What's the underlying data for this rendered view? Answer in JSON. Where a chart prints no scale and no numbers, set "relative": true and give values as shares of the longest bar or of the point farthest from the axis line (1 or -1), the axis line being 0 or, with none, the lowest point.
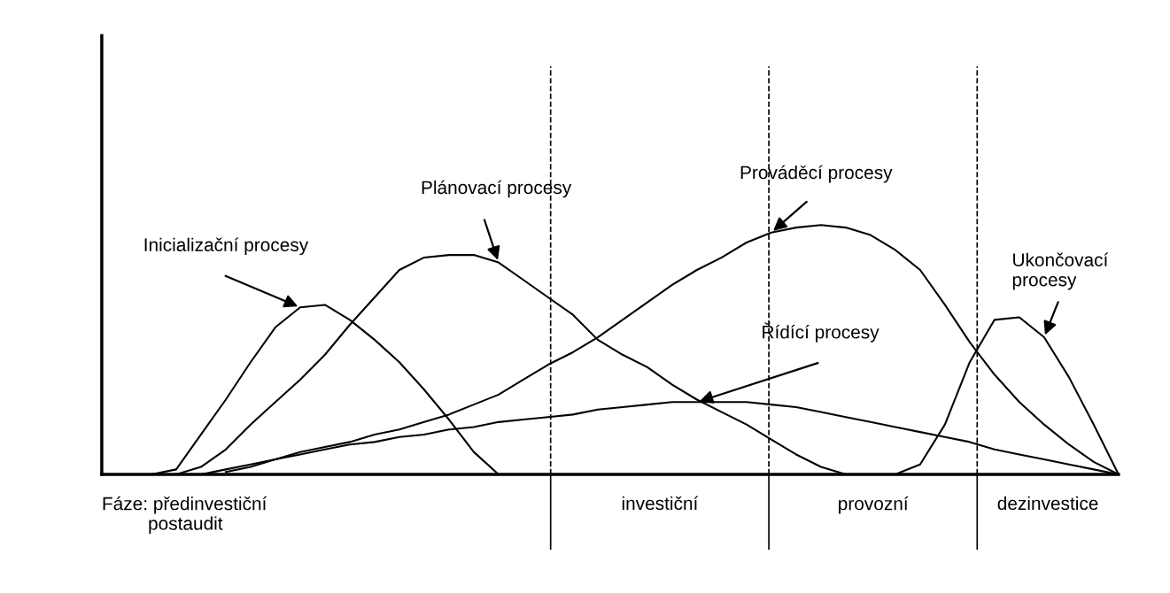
{
  "chart_data": {
    "type": "line",
    "relative": true,
    "marker": "none",
    "line_style": "solid",
    "categories": [
      null,
      null,
      null,
      null,
      null,
      null,
      null,
      null,
      null,
      null,
      null,
      null,
      null,
      null,
      null,
      null,
      null,
      null,
      null,
      null,
      null,
      null,
      null,
      null,
      null,
      null,
      null,
      null,
      null,
      null,
      null,
      null,
      null,
      null,
      null,
      null,
      null,
      null,
      null,
      null,
      null,
      null
    ],
    "series": [
      {
        "name": "Inicializační procesy",
        "color": "#000000",
        "values": [
          null,
          null,
          0,
          0.02,
          0.16,
          0.3,
          0.45,
          0.59,
          0.67,
          0.68,
          0.62,
          0.54,
          0.45,
          0.34,
          0.22,
          0.09,
          0,
          null,
          null,
          null,
          null,
          null,
          null,
          null,
          null,
          null,
          null,
          null,
          null,
          null,
          null,
          null,
          null,
          null,
          null,
          null,
          null,
          null,
          null,
          null,
          null,
          null
        ]
      },
      {
        "name": "Plánovací procesy",
        "color": "#000000",
        "values": [
          null,
          null,
          null,
          0,
          0.03,
          0.1,
          0.2,
          0.29,
          0.38,
          0.48,
          0.6,
          0.71,
          0.82,
          0.87,
          0.88,
          0.88,
          0.85,
          0.78,
          0.71,
          0.64,
          0.54,
          0.48,
          0.43,
          0.36,
          0.3,
          0.25,
          0.2,
          0.14,
          0.08,
          0.03,
          0,
          null,
          null,
          null,
          null,
          null,
          null,
          null,
          null,
          null,
          null,
          null
        ]
      },
      {
        "name": "Prováděcí procesy",
        "color": "#000000",
        "values": [
          null,
          null,
          null,
          null,
          0,
          0.02,
          0.04,
          0.06,
          0.09,
          0.11,
          0.13,
          0.16,
          0.18,
          0.21,
          0.24,
          0.28,
          0.32,
          0.38,
          0.44,
          0.49,
          0.55,
          0.62,
          0.69,
          0.76,
          0.82,
          0.87,
          0.93,
          0.97,
          0.99,
          1.0,
          0.99,
          0.96,
          0.9,
          0.82,
          0.68,
          0.53,
          0.4,
          0.29,
          0.2,
          0.12,
          0.05,
          0
        ]
      },
      {
        "name": "Řídící procesy",
        "color": "#000000",
        "values": [
          null,
          null,
          null,
          null,
          null,
          0.01,
          0.03,
          0.06,
          0.08,
          0.1,
          0.12,
          0.13,
          0.15,
          0.16,
          0.18,
          0.19,
          0.21,
          0.22,
          0.23,
          0.24,
          0.26,
          0.27,
          0.28,
          0.29,
          0.29,
          0.29,
          0.29,
          0.28,
          0.27,
          0.25,
          0.23,
          0.21,
          0.19,
          0.17,
          0.15,
          0.13,
          0.1,
          0.08,
          0.06,
          0.04,
          0.02,
          0
        ]
      },
      {
        "name": "Ukončovací\nprocesy",
        "color": "#000000",
        "values": [
          null,
          null,
          null,
          null,
          null,
          null,
          null,
          null,
          null,
          null,
          null,
          null,
          null,
          null,
          null,
          null,
          null,
          null,
          null,
          null,
          null,
          null,
          null,
          null,
          null,
          null,
          null,
          null,
          null,
          null,
          null,
          null,
          0,
          0.04,
          0.2,
          0.45,
          0.62,
          0.63,
          0.55,
          0.39,
          0.2,
          0
        ]
      }
    ],
    "annotations": [
      "Fáze: předinvestiční\n         postaudit",
      "investiční",
      "provozní",
      "dezinvestice"
    ]
  }
}
